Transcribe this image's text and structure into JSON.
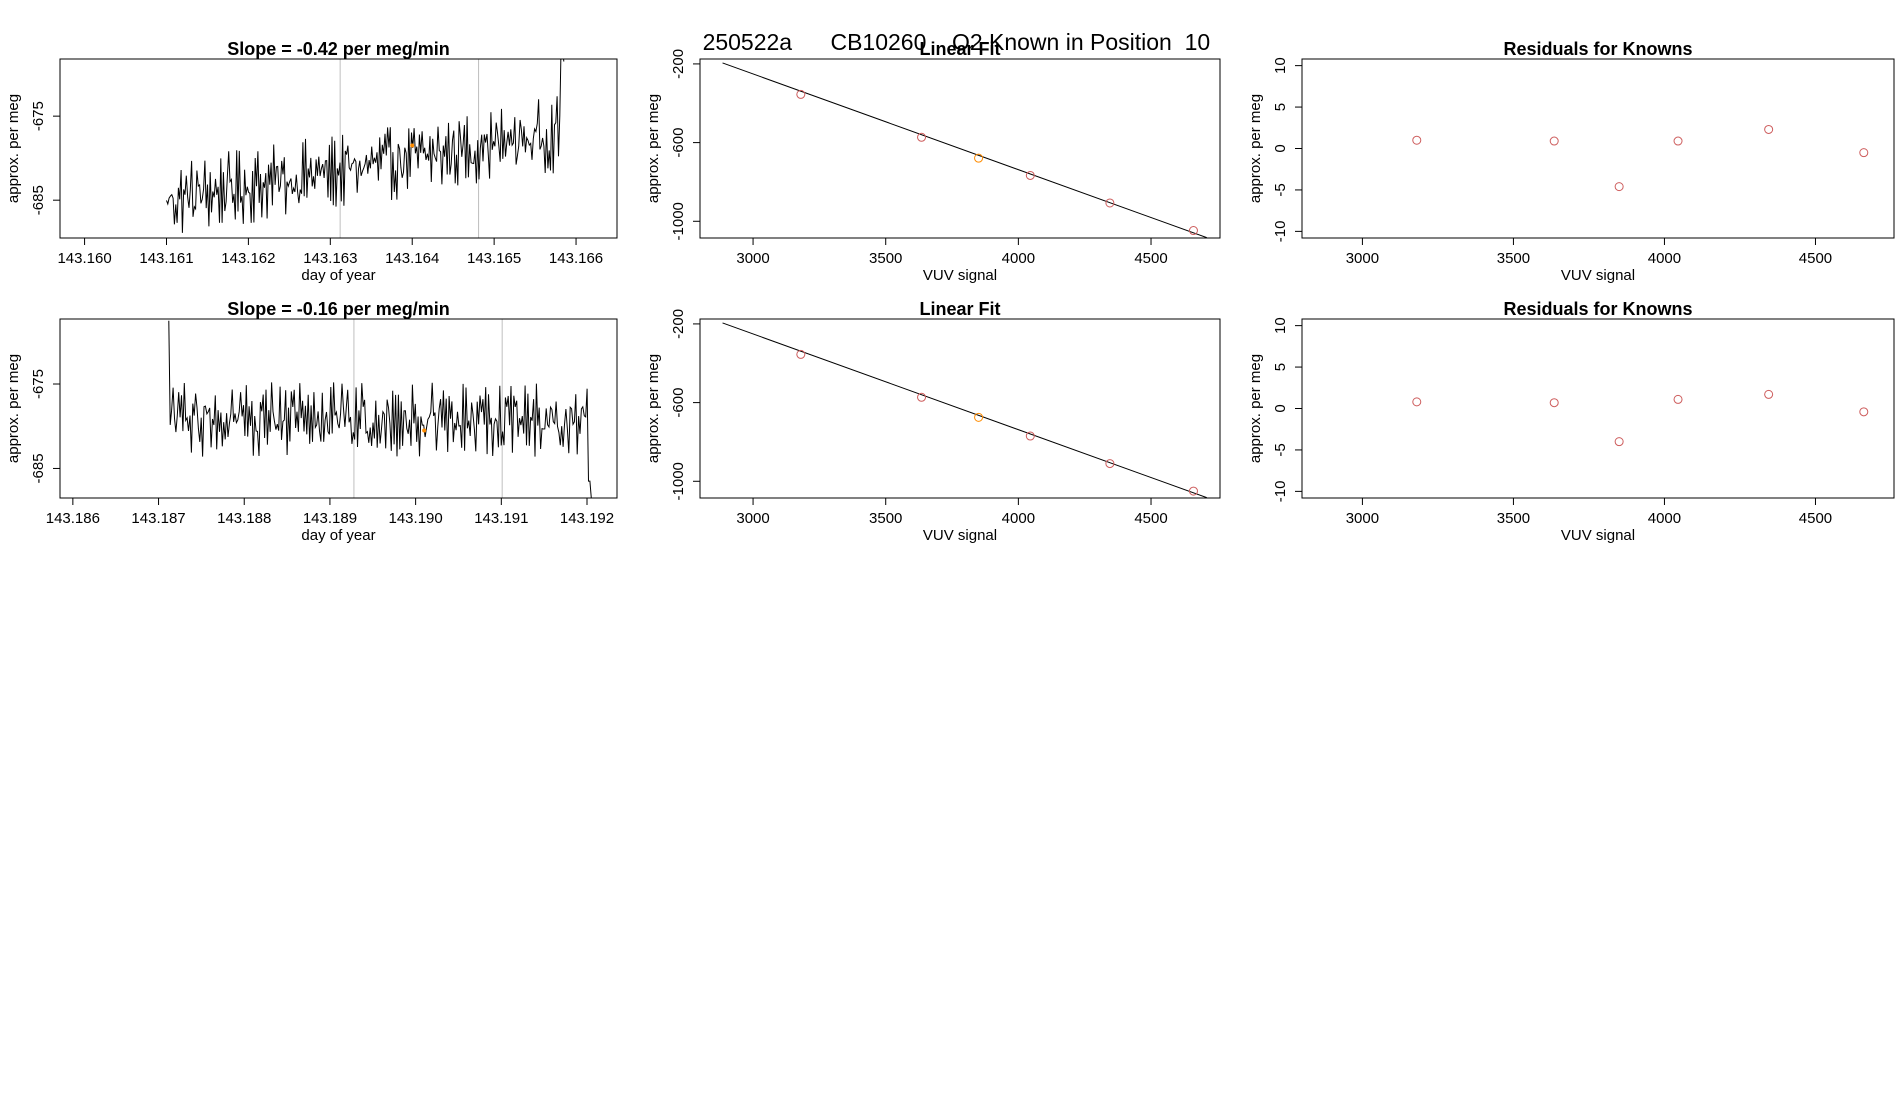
{
  "figure": {
    "header_parts": [
      "250522a",
      "CB10260",
      "O2 Known in Position  10"
    ]
  },
  "chart_data": [
    {
      "type": "line",
      "title": "Slope =  -0.42  per meg/min",
      "xlabel": "day of year",
      "ylabel": "approx. per meg",
      "xlim": [
        143.1597,
        143.1665
      ],
      "ylim": [
        -689.5,
        -668.2
      ],
      "xticks": [
        "143.160",
        "143.161",
        "143.162",
        "143.163",
        "143.164",
        "143.165",
        "143.166"
      ],
      "yticks": [
        "-675",
        "-685"
      ],
      "ytick_values": [
        -675,
        -685
      ],
      "vlines": [
        143.16312,
        143.16481
      ],
      "trace": {
        "start": 143.161,
        "end": 143.16585,
        "n": 300,
        "base_start": -685,
        "base_end": -677,
        "amplitude": 3.2,
        "end_value": -668.5
      },
      "marker": {
        "x": 143.164,
        "y": -678.5
      },
      "grid": false
    },
    {
      "type": "scatter",
      "title": "Linear Fit",
      "xlabel": "VUV signal",
      "ylabel": "approx. per meg",
      "xlim": [
        2800,
        4760
      ],
      "ylim": [
        -1085,
        -175
      ],
      "xticks": [
        "3000",
        "3500",
        "4000",
        "4500"
      ],
      "xtick_values": [
        3000,
        3500,
        4000,
        4500
      ],
      "yticks": [
        "-200",
        "-600",
        "-1000"
      ],
      "ytick_values": [
        -200,
        -600,
        -1000
      ],
      "x": [
        3180,
        3635,
        3850,
        4045,
        4345,
        4660
      ],
      "y": [
        -355,
        -573,
        -679,
        -767,
        -907,
        -1047
      ],
      "highlight_index": 2,
      "fit_line": {
        "x": [
          2885,
          4710
        ],
        "y": [
          -195,
          -1083
        ]
      },
      "grid": false
    },
    {
      "type": "scatter",
      "title": "Residuals for Knowns",
      "xlabel": "VUV signal",
      "ylabel": "approx. per meg",
      "xlim": [
        2800,
        4760
      ],
      "ylim": [
        -10.8,
        10.8
      ],
      "xticks": [
        "3000",
        "3500",
        "4000",
        "4500"
      ],
      "xtick_values": [
        3000,
        3500,
        4000,
        4500
      ],
      "yticks": [
        "10",
        "5",
        "0",
        "-5",
        "-10"
      ],
      "ytick_values": [
        10,
        5,
        0,
        -5,
        -10
      ],
      "x": [
        3180,
        3635,
        3850,
        4045,
        4345,
        4660
      ],
      "y": [
        1.0,
        0.9,
        -4.6,
        0.9,
        2.3,
        -0.5
      ],
      "grid": false
    },
    {
      "type": "line",
      "title": "Slope =  -0.16  per meg/min",
      "xlabel": "day of year",
      "ylabel": "approx. per meg",
      "xlim": [
        143.18585,
        143.19235
      ],
      "ylim": [
        -688.5,
        -667.3
      ],
      "xticks": [
        "143.186",
        "143.187",
        "143.188",
        "143.189",
        "143.190",
        "143.191",
        "143.192"
      ],
      "yticks": [
        "-675",
        "-685"
      ],
      "ytick_values": [
        -675,
        -685
      ],
      "vlines": [
        143.18928,
        143.19101
      ],
      "trace": {
        "start": 143.18712,
        "end": 143.19205,
        "n": 300,
        "base_start": -679.2,
        "base_end": -679.2,
        "amplitude": 3.0,
        "start_value": -667.5,
        "end_value": -688.5
      },
      "marker": {
        "x": 143.1901,
        "y": -680.5
      },
      "grid": false
    },
    {
      "type": "scatter",
      "title": "Linear Fit",
      "xlabel": "VUV signal",
      "ylabel": "approx. per meg",
      "xlim": [
        2800,
        4760
      ],
      "ylim": [
        -1085,
        -175
      ],
      "xticks": [
        "3000",
        "3500",
        "4000",
        "4500"
      ],
      "xtick_values": [
        3000,
        3500,
        4000,
        4500
      ],
      "yticks": [
        "-200",
        "-600",
        "-1000"
      ],
      "ytick_values": [
        -200,
        -600,
        -1000
      ],
      "x": [
        3180,
        3635,
        3850,
        4045,
        4345,
        4660
      ],
      "y": [
        -355,
        -573,
        -675,
        -770,
        -910,
        -1050
      ],
      "highlight_index": 2,
      "fit_line": {
        "x": [
          2885,
          4710
        ],
        "y": [
          -195,
          -1083
        ]
      },
      "grid": false
    },
    {
      "type": "scatter",
      "title": "Residuals for Knowns",
      "xlabel": "VUV signal",
      "ylabel": "approx. per meg",
      "xlim": [
        2800,
        4760
      ],
      "ylim": [
        -10.8,
        10.8
      ],
      "xticks": [
        "3000",
        "3500",
        "4000",
        "4500"
      ],
      "xtick_values": [
        3000,
        3500,
        4000,
        4500
      ],
      "yticks": [
        "10",
        "5",
        "0",
        "-5",
        "-10"
      ],
      "ytick_values": [
        10,
        5,
        0,
        -5,
        -10
      ],
      "x": [
        3180,
        3635,
        3850,
        4045,
        4345,
        4660
      ],
      "y": [
        0.8,
        0.7,
        -4.0,
        1.1,
        1.7,
        -0.4
      ],
      "grid": false
    }
  ],
  "colors": {
    "points": "#cd5c5c",
    "highlight": "#ff8c00",
    "trace": "#000000",
    "vline": "#bebebe",
    "frame": "#000000"
  }
}
